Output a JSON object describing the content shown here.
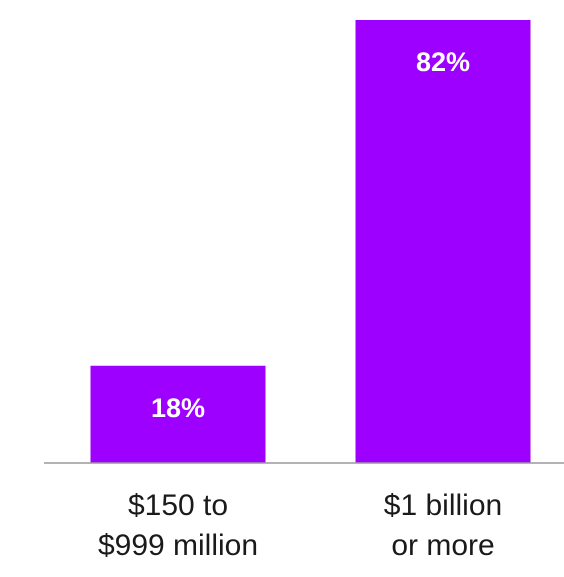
{
  "chart_data": {
    "type": "bar",
    "title": "",
    "xlabel": "",
    "ylabel": "",
    "categories": [
      [
        "$150 to",
        "$999 million"
      ],
      [
        "$1 billion",
        "or more"
      ]
    ],
    "values": [
      18,
      82
    ],
    "value_labels": [
      "18%",
      "82%"
    ],
    "value_unit": "%",
    "ylim": [
      0,
      100
    ],
    "grid": false,
    "legend": "none",
    "bar_color": "#9d00ff",
    "value_label_color": "#ffffff",
    "axis_color": "#9a9a9a"
  }
}
